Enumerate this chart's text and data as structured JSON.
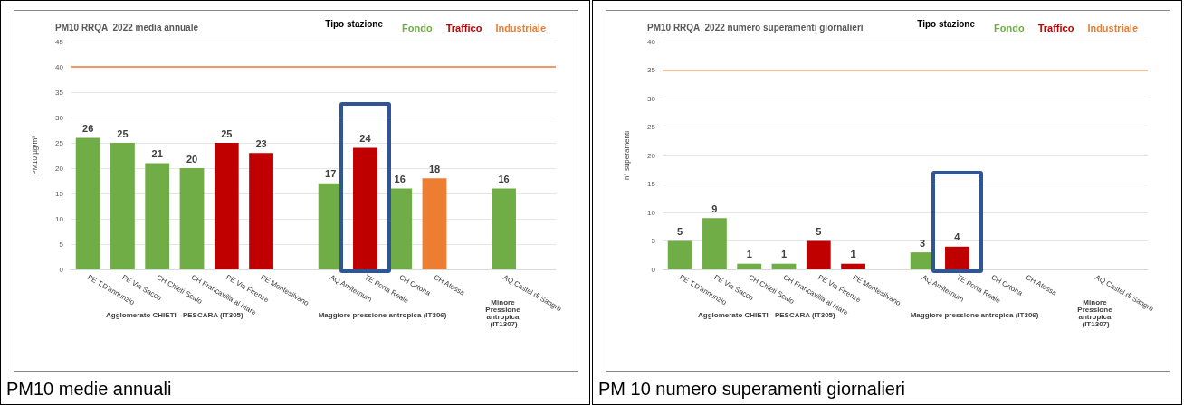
{
  "chart_data": [
    {
      "type": "bar",
      "title": "PM10 RRQA  2022 media annuale",
      "ylabel": "PM10 µg/m³",
      "legend_title": "Tipo stazione",
      "categories": [
        "PE T.D'annunzio",
        "PE Via Sacco",
        "CH Chieti Scalo",
        "CH Francavilla al Mare",
        "PE Via Firenze",
        "PE Montesilvano",
        null,
        "AQ Amiternum",
        "TE Porta Reale",
        "CH Ortona",
        "CH Atessa",
        null,
        "AQ Castel di Sangro",
        null
      ],
      "stacked": true,
      "series": [
        {
          "name": "Fondo",
          "color": "#70ad47",
          "values": [
            26,
            25,
            21,
            20,
            null,
            null,
            null,
            17,
            null,
            16,
            null,
            null,
            16,
            null
          ]
        },
        {
          "name": "Traffico",
          "color": "#c00000",
          "values": [
            null,
            null,
            null,
            null,
            25,
            23,
            null,
            null,
            24,
            null,
            null,
            null,
            null,
            null
          ]
        },
        {
          "name": "Industriale",
          "color": "#ed7d31",
          "values": [
            null,
            null,
            null,
            null,
            null,
            null,
            null,
            null,
            null,
            null,
            18,
            null,
            null,
            null
          ]
        }
      ],
      "ylim": [
        0,
        45
      ],
      "yticks": [
        0,
        5,
        10,
        15,
        20,
        25,
        30,
        35,
        40,
        45
      ],
      "grid": "y",
      "legend": "top right",
      "data_labels": true,
      "ref_lines": [
        {
          "axis": "y",
          "value": 40,
          "color": "#ed7d31"
        }
      ],
      "annotations": [
        "Agglomerato CHIETI - PESCARA (IT305)",
        "Maggiore pressione antropica (IT306)",
        "Minore Pressione antropica (IT1307)",
        "PM10 medie annuali"
      ]
    },
    {
      "type": "bar",
      "title": "PM10 RRQA  2022 numero superamenti giornalieri",
      "ylabel": "n° superamenti",
      "legend_title": "Tipo stazione",
      "categories": [
        "PE T.D'annunzio",
        "PE Via Sacco",
        "CH Chieti Scalo",
        "CH Francavilla al Mare",
        "PE Via Firenze",
        "PE Montesilvano",
        null,
        "AQ Amiternum",
        "TE Porta Reale",
        "CH Ortona",
        "CH Atessa",
        null,
        "AQ Castel di Sangro",
        null
      ],
      "stacked": true,
      "series": [
        {
          "name": "Fondo",
          "color": "#70ad47",
          "values": [
            5,
            9,
            1,
            1,
            null,
            null,
            null,
            3,
            null,
            null,
            null,
            null,
            null,
            null
          ]
        },
        {
          "name": "Traffico",
          "color": "#c00000",
          "values": [
            null,
            null,
            null,
            null,
            5,
            1,
            null,
            null,
            4,
            null,
            null,
            null,
            null,
            null
          ]
        },
        {
          "name": "Industriale",
          "color": "#ed7d31",
          "values": [
            null,
            null,
            null,
            null,
            null,
            null,
            null,
            null,
            null,
            null,
            null,
            null,
            null,
            null
          ]
        }
      ],
      "ylim": [
        0,
        40
      ],
      "yticks": [
        0,
        5,
        10,
        15,
        20,
        25,
        30,
        35,
        40
      ],
      "grid": "y",
      "legend": "top right",
      "data_labels": true,
      "ref_lines": [
        {
          "axis": "y",
          "value": 35,
          "color": "#f4b183"
        }
      ],
      "annotations": [
        "Agglomerato CHIETI - PESCARA (IT305)",
        "Maggiore pressione antropica (IT306)",
        "Minore Pressione antropica (IT1307)",
        "PM 10 numero superamenti giornalieri"
      ]
    }
  ]
}
